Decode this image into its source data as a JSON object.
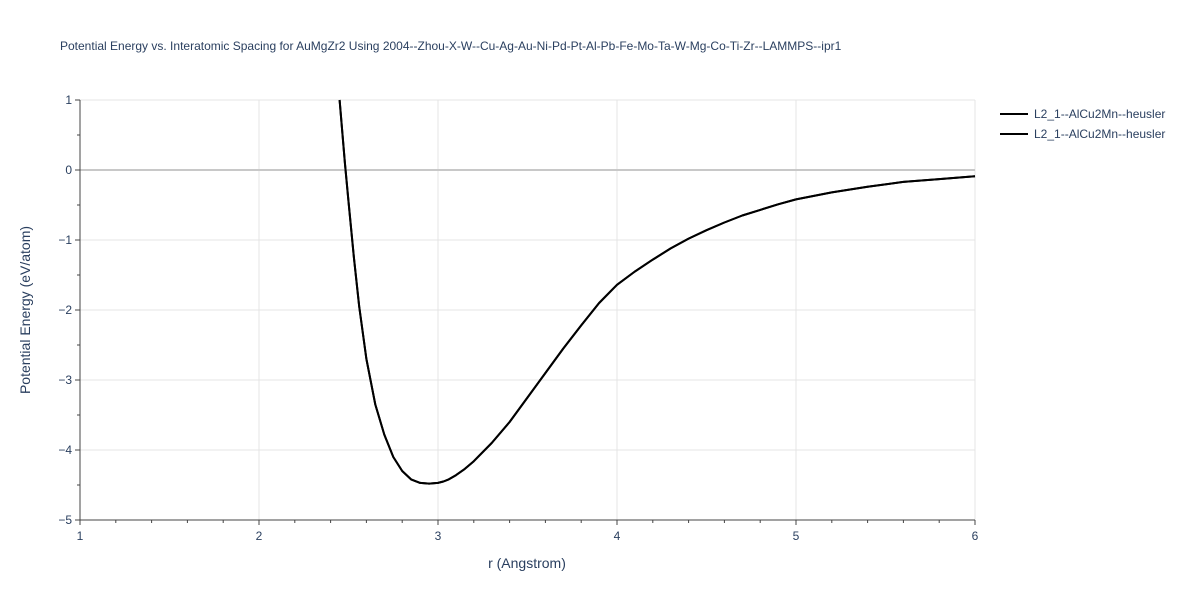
{
  "chart_data": {
    "type": "line",
    "title": "Potential Energy vs. Interatomic Spacing for AuMgZr2 Using 2004--Zhou-X-W--Cu-Ag-Au-Ni-Pd-Pt-Al-Pb-Fe-Mo-Ta-W-Mg-Co-Ti-Zr--LAMMPS--ipr1",
    "xlabel": "r (Angstrom)",
    "ylabel": "Potential Energy (eV/atom)",
    "xlim": [
      1,
      6
    ],
    "ylim": [
      -5,
      1
    ],
    "x_ticks": [
      1,
      2,
      3,
      4,
      5,
      6
    ],
    "x_tick_labels": [
      "1",
      "2",
      "3",
      "4",
      "5",
      "6"
    ],
    "y_ticks": [
      1,
      0,
      -1,
      -2,
      -3,
      -4,
      -5
    ],
    "y_tick_labels": [
      "1",
      "0",
      "−1",
      "−2",
      "−3",
      "−4",
      "−5"
    ],
    "grid": true,
    "legend_position": "top-right",
    "series_color": "#000000",
    "series": [
      {
        "name": "L2_1--AlCu2Mn--heusler",
        "x": [
          2.45,
          2.48,
          2.5,
          2.53,
          2.56,
          2.6,
          2.65,
          2.7,
          2.75,
          2.8,
          2.85,
          2.9,
          2.95,
          3.0,
          3.03,
          3.06,
          3.1,
          3.15,
          3.2,
          3.3,
          3.4,
          3.5,
          3.6,
          3.7,
          3.8,
          3.9,
          4.0,
          4.1,
          4.2,
          4.3,
          4.4,
          4.5,
          4.6,
          4.7,
          4.8,
          4.9,
          5.0,
          5.2,
          5.4,
          5.6,
          5.8,
          6.0
        ],
        "y": [
          1.0,
          0.1,
          -0.45,
          -1.25,
          -1.95,
          -2.7,
          -3.35,
          -3.78,
          -4.1,
          -4.3,
          -4.42,
          -4.47,
          -4.48,
          -4.47,
          -4.45,
          -4.42,
          -4.36,
          -4.27,
          -4.16,
          -3.9,
          -3.6,
          -3.25,
          -2.9,
          -2.55,
          -2.22,
          -1.9,
          -1.64,
          -1.45,
          -1.28,
          -1.12,
          -0.98,
          -0.86,
          -0.75,
          -0.65,
          -0.57,
          -0.49,
          -0.42,
          -0.32,
          -0.24,
          -0.17,
          -0.13,
          -0.09
        ]
      },
      {
        "name": "L2_1--AlCu2Mn--heusler",
        "x": [
          2.45,
          2.48,
          2.5,
          2.53,
          2.56,
          2.6,
          2.65,
          2.7,
          2.75,
          2.8,
          2.85,
          2.9,
          2.95,
          3.0,
          3.03,
          3.06,
          3.1,
          3.15,
          3.2,
          3.3,
          3.4,
          3.5,
          3.6,
          3.7,
          3.8,
          3.9,
          4.0,
          4.1,
          4.2,
          4.3,
          4.4,
          4.5,
          4.6,
          4.7,
          4.8,
          4.9,
          5.0,
          5.2,
          5.4,
          5.6,
          5.8,
          6.0
        ],
        "y": [
          1.0,
          0.1,
          -0.45,
          -1.25,
          -1.95,
          -2.7,
          -3.35,
          -3.78,
          -4.1,
          -4.3,
          -4.42,
          -4.47,
          -4.48,
          -4.47,
          -4.45,
          -4.42,
          -4.36,
          -4.27,
          -4.16,
          -3.9,
          -3.6,
          -3.25,
          -2.9,
          -2.55,
          -2.22,
          -1.9,
          -1.64,
          -1.45,
          -1.28,
          -1.12,
          -0.98,
          -0.86,
          -0.75,
          -0.65,
          -0.57,
          -0.49,
          -0.42,
          -0.32,
          -0.24,
          -0.17,
          -0.13,
          -0.09
        ]
      }
    ]
  }
}
